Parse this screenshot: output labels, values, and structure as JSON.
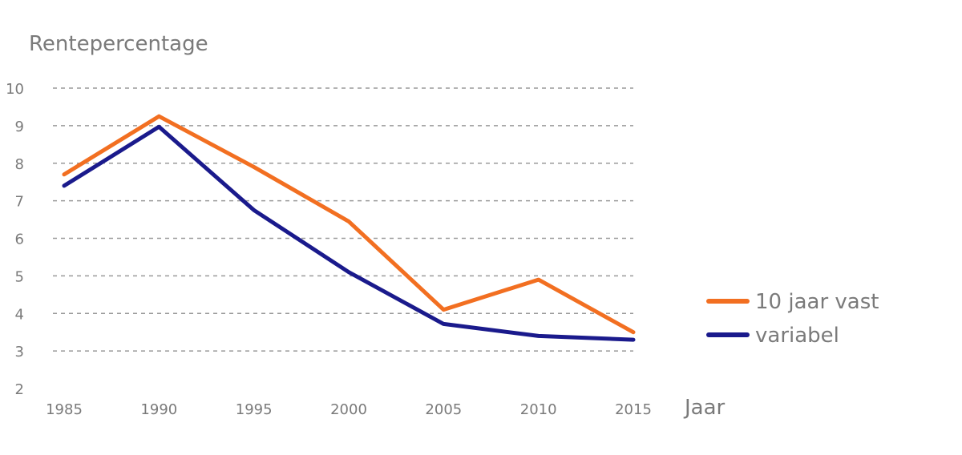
{
  "chart_data": {
    "type": "line",
    "ylabel": "Rentepercentage",
    "xlabel": "Jaar",
    "x": [
      1985,
      1990,
      1995,
      2000,
      2005,
      2010,
      2015
    ],
    "xticks": [
      "1985",
      "1990",
      "1995",
      "2000",
      "2005",
      "2010",
      "2015"
    ],
    "yticks": [
      "2",
      "3",
      "4",
      "5",
      "6",
      "7",
      "8",
      "9",
      "10"
    ],
    "ylim": [
      2,
      10
    ],
    "xlim": [
      1985,
      2015
    ],
    "grid": true,
    "legend_position": "right",
    "series": [
      {
        "name": "10 jaar vast",
        "color": "#f26f21",
        "values": [
          7.7,
          9.25,
          7.9,
          6.45,
          4.1,
          4.9,
          3.5
        ]
      },
      {
        "name": "variabel",
        "color": "#1a1a8c",
        "values": [
          7.4,
          8.97,
          6.75,
          5.1,
          3.72,
          3.4,
          3.3
        ]
      }
    ]
  }
}
